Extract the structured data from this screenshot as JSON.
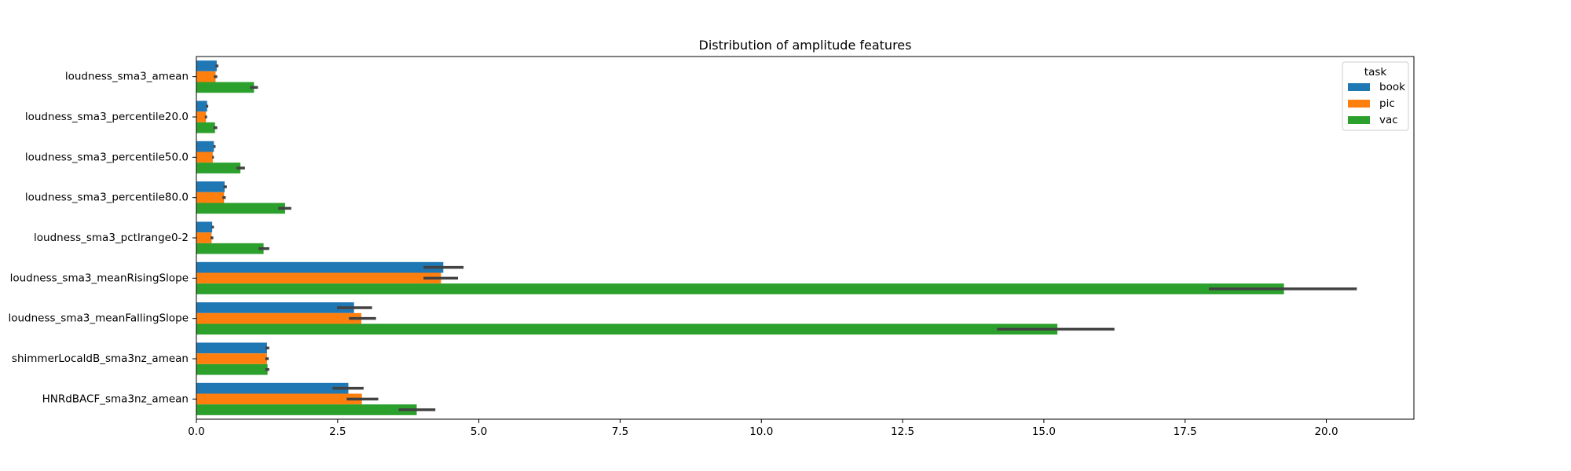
{
  "chart_data": {
    "type": "bar",
    "orientation": "horizontal",
    "title": "Distribution of amplitude features",
    "xlabel": "",
    "ylabel": "",
    "xlim": [
      0,
      21.55
    ],
    "xticks": [
      0.0,
      2.5,
      5.0,
      7.5,
      10.0,
      12.5,
      15.0,
      17.5,
      20.0
    ],
    "xtick_labels": [
      "0.0",
      "2.5",
      "5.0",
      "7.5",
      "10.0",
      "12.5",
      "15.0",
      "17.5",
      "20.0"
    ],
    "grid": false,
    "legend_title": "task",
    "legend_position": "top-right",
    "categories": [
      "loudness_sma3_amean",
      "loudness_sma3_percentile20.0",
      "loudness_sma3_percentile50.0",
      "loudness_sma3_percentile80.0",
      "loudness_sma3_pctlrange0-2",
      "loudness_sma3_meanRisingSlope",
      "loudness_sma3_meanFallingSlope",
      "shimmerLocaldB_sma3nz_amean",
      "HNRdBACF_sma3nz_amean"
    ],
    "series": [
      {
        "name": "book",
        "color": "#1f77b4",
        "values": [
          0.36,
          0.19,
          0.31,
          0.5,
          0.28,
          4.37,
          2.79,
          1.25,
          2.69
        ],
        "error_low": [
          0.34,
          0.17,
          0.3,
          0.48,
          0.27,
          4.02,
          2.49,
          1.22,
          2.41
        ],
        "error_high": [
          0.39,
          0.21,
          0.34,
          0.54,
          0.31,
          4.73,
          3.11,
          1.29,
          2.96
        ]
      },
      {
        "name": "pic",
        "color": "#ff7f0e",
        "values": [
          0.34,
          0.17,
          0.29,
          0.49,
          0.27,
          4.33,
          2.92,
          1.25,
          2.93
        ],
        "error_low": [
          0.31,
          0.15,
          0.28,
          0.46,
          0.25,
          4.02,
          2.7,
          1.22,
          2.66
        ],
        "error_high": [
          0.37,
          0.19,
          0.31,
          0.52,
          0.3,
          4.63,
          3.18,
          1.28,
          3.22
        ]
      },
      {
        "name": "vac",
        "color": "#2ca02c",
        "values": [
          1.02,
          0.33,
          0.78,
          1.57,
          1.19,
          19.25,
          15.24,
          1.26,
          3.9
        ],
        "error_low": [
          0.95,
          0.3,
          0.71,
          1.45,
          1.1,
          17.92,
          14.17,
          1.22,
          3.58
        ],
        "error_high": [
          1.09,
          0.37,
          0.86,
          1.68,
          1.29,
          20.54,
          16.25,
          1.29,
          4.23
        ]
      }
    ]
  }
}
